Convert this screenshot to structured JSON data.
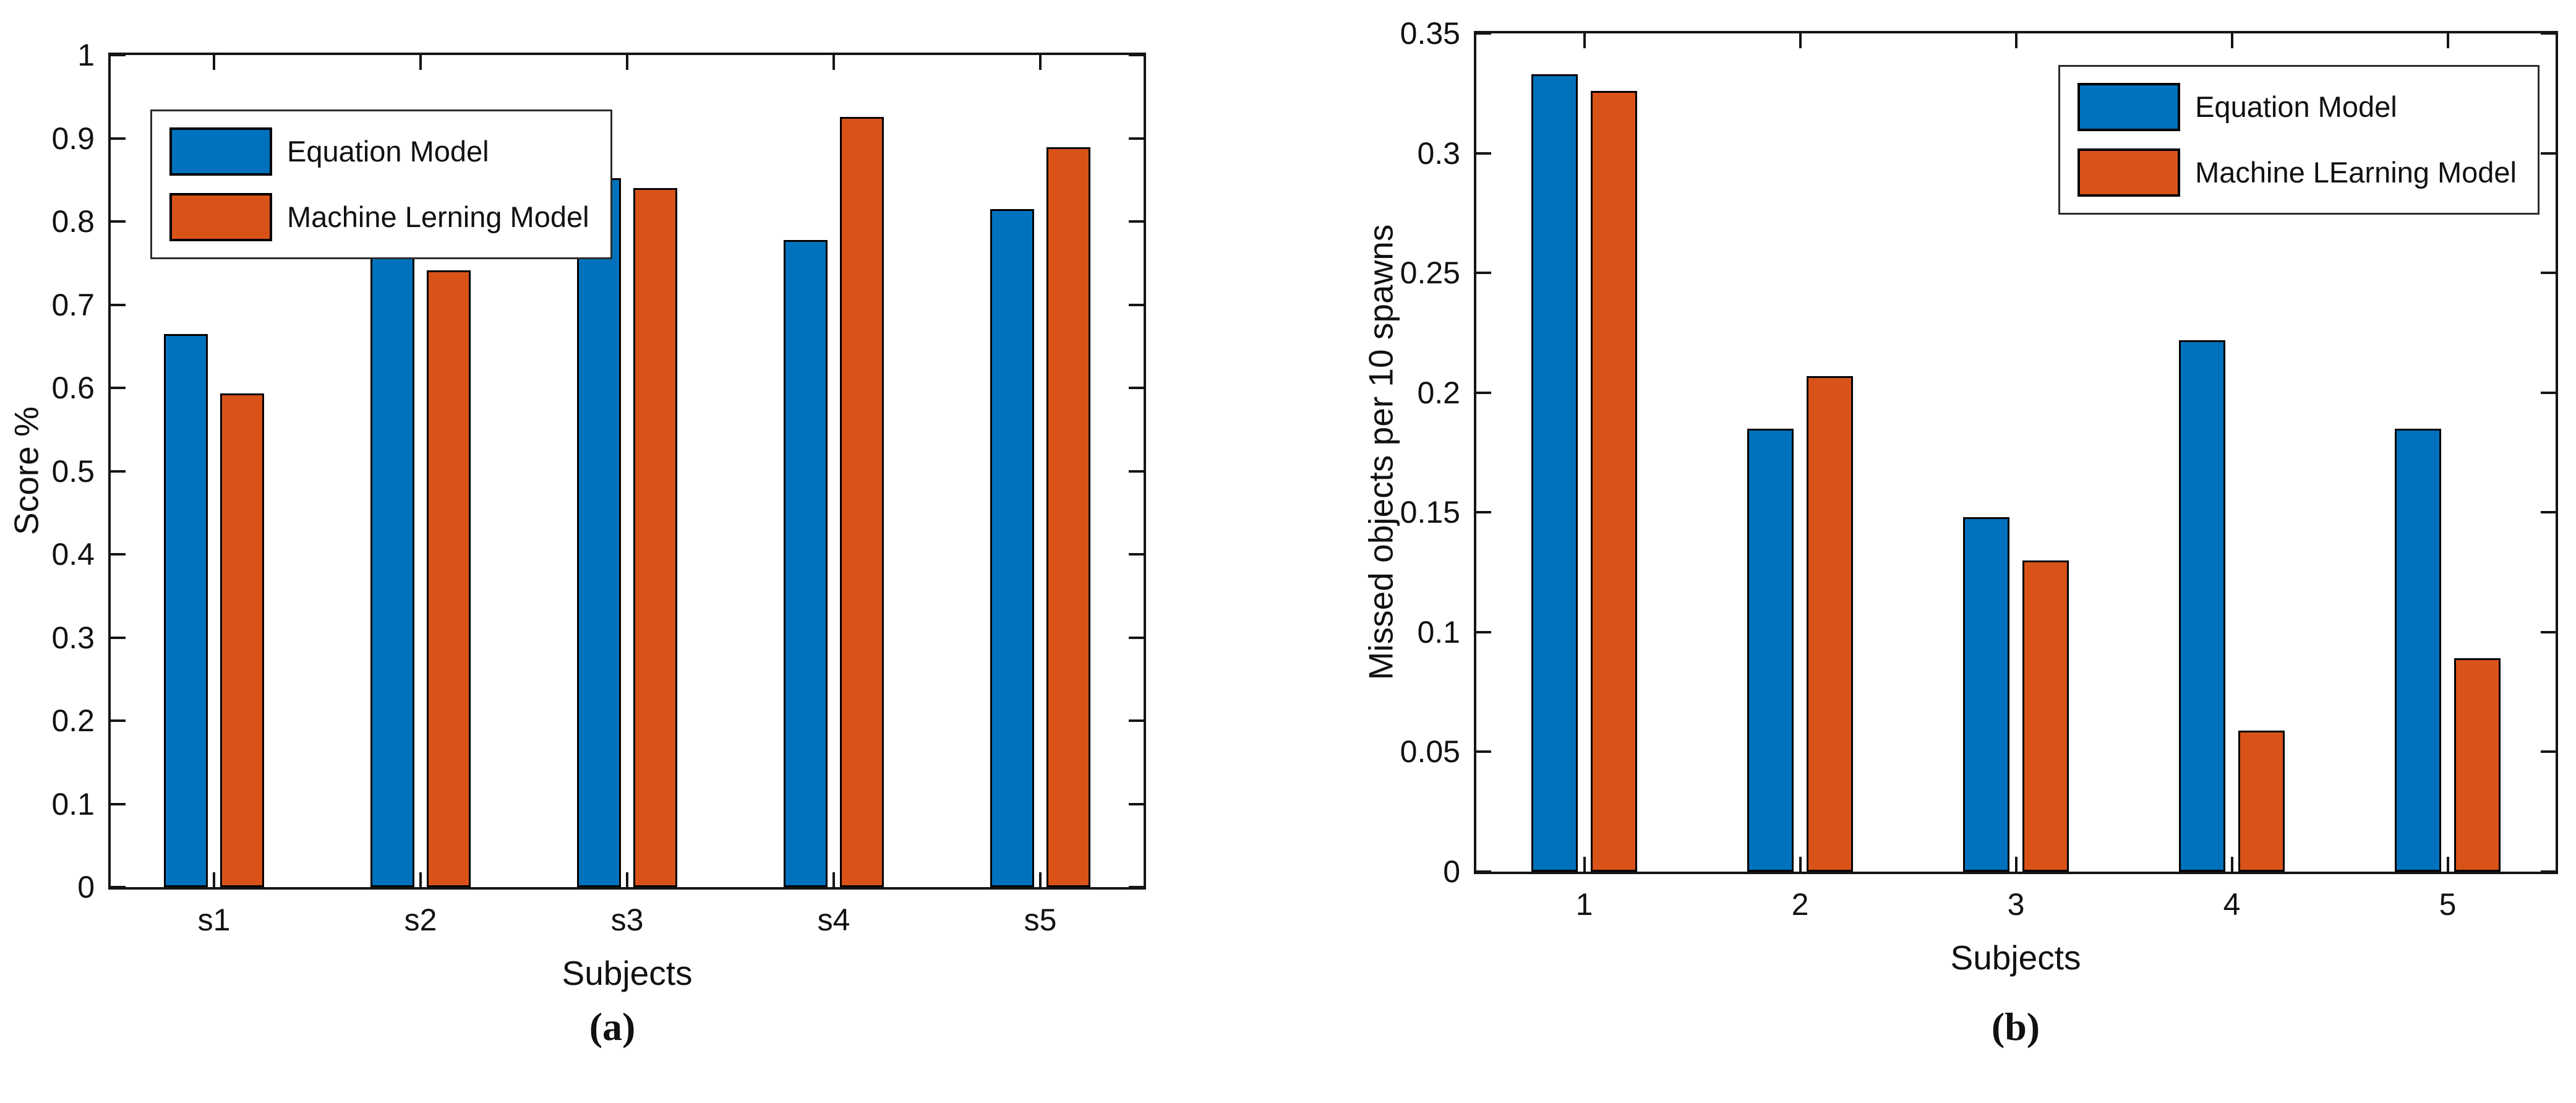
{
  "figure": {
    "background": "#ffffff",
    "description": "Two-panel grouped bar chart figure comparing Equation Model vs Machine Learning Model across subjects"
  },
  "captions": {
    "a": "(a)",
    "b": "(b)"
  },
  "colors": {
    "series_blue": "#0072BD",
    "series_orange": "#D95319",
    "axis": "#151515",
    "bar_edge": "#000000",
    "legend_border": "#2b2b2b",
    "background": "#ffffff"
  },
  "chart_data": [
    {
      "type": "bar",
      "panel": "a",
      "caption": "(a)",
      "title": "",
      "xlabel": "Subjects",
      "ylabel": "Score %",
      "categories": [
        "s1",
        "s2",
        "s3",
        "s4",
        "s5"
      ],
      "series": [
        {
          "name": "Equation Model",
          "color": "#0072BD",
          "values": [
            0.665,
            0.815,
            0.852,
            0.778,
            0.815
          ]
        },
        {
          "name": "Machine Lerning Model",
          "color": "#D95319",
          "values": [
            0.593,
            0.741,
            0.84,
            0.926,
            0.889
          ]
        }
      ],
      "ylim": [
        0,
        1
      ],
      "ytick_values": [
        0,
        0.1,
        0.2,
        0.3,
        0.4,
        0.5,
        0.6,
        0.7,
        0.8,
        0.9,
        1
      ],
      "ytick_labels": [
        "0",
        "0.1",
        "0.2",
        "0.3",
        "0.4",
        "0.5",
        "0.6",
        "0.7",
        "0.8",
        "0.9",
        "1"
      ],
      "legend_position": "top-left",
      "grid": false
    },
    {
      "type": "bar",
      "panel": "b",
      "caption": "(b)",
      "title": "",
      "xlabel": "Subjects",
      "ylabel": "Missed objects per 10 spawns",
      "categories": [
        "1",
        "2",
        "3",
        "4",
        "5"
      ],
      "series": [
        {
          "name": "Equation Model",
          "color": "#0072BD",
          "values": [
            0.333,
            0.185,
            0.148,
            0.222,
            0.185
          ]
        },
        {
          "name": "Machine LEarning Model",
          "color": "#D95319",
          "values": [
            0.326,
            0.207,
            0.13,
            0.059,
            0.089
          ]
        }
      ],
      "ylim": [
        0,
        0.35
      ],
      "ytick_values": [
        0,
        0.05,
        0.1,
        0.15,
        0.2,
        0.25,
        0.3,
        0.35
      ],
      "ytick_labels": [
        "0",
        "0.05",
        "0.1",
        "0.15",
        "0.2",
        "0.25",
        "0.3",
        "0.35"
      ],
      "legend_position": "top-right",
      "grid": false
    }
  ]
}
